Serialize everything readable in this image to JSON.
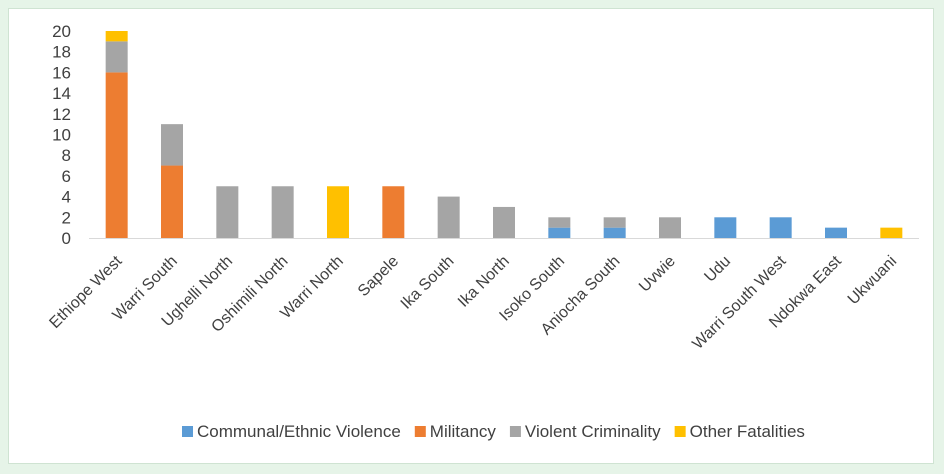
{
  "chart_data": {
    "type": "bar",
    "stacked": true,
    "categories": [
      "Ethiope West",
      "Warri South",
      "Ughelli North",
      "Oshimili North",
      "Warri North",
      "Sapele",
      "Ika South",
      "Ika North",
      "Isoko South",
      "Aniocha South",
      "Uvwie",
      "Udu",
      "Warri South West",
      "Ndokwa East",
      "Ukwuani"
    ],
    "series": [
      {
        "name": "Communal/Ethnic Violence",
        "color": "#5b9bd5",
        "values": [
          0,
          0,
          0,
          0,
          0,
          0,
          0,
          0,
          1,
          1,
          0,
          2,
          2,
          1,
          0
        ]
      },
      {
        "name": "Militancy",
        "color": "#ed7d31",
        "values": [
          16,
          7,
          0,
          0,
          0,
          5,
          0,
          0,
          0,
          0,
          0,
          0,
          0,
          0,
          0
        ]
      },
      {
        "name": "Violent Criminality",
        "color": "#a5a5a5",
        "values": [
          3,
          4,
          5,
          5,
          0,
          0,
          4,
          3,
          1,
          1,
          2,
          0,
          0,
          0,
          0
        ]
      },
      {
        "name": "Other Fatalities",
        "color": "#ffc000",
        "values": [
          1,
          0,
          0,
          0,
          5,
          0,
          0,
          0,
          0,
          0,
          0,
          0,
          0,
          0,
          1
        ]
      }
    ],
    "ylim": [
      0,
      20
    ],
    "yticks": [
      "0",
      "2",
      "4",
      "6",
      "8",
      "10",
      "12",
      "14",
      "16",
      "18",
      "20"
    ],
    "grid": false,
    "legend_position": "bottom"
  }
}
